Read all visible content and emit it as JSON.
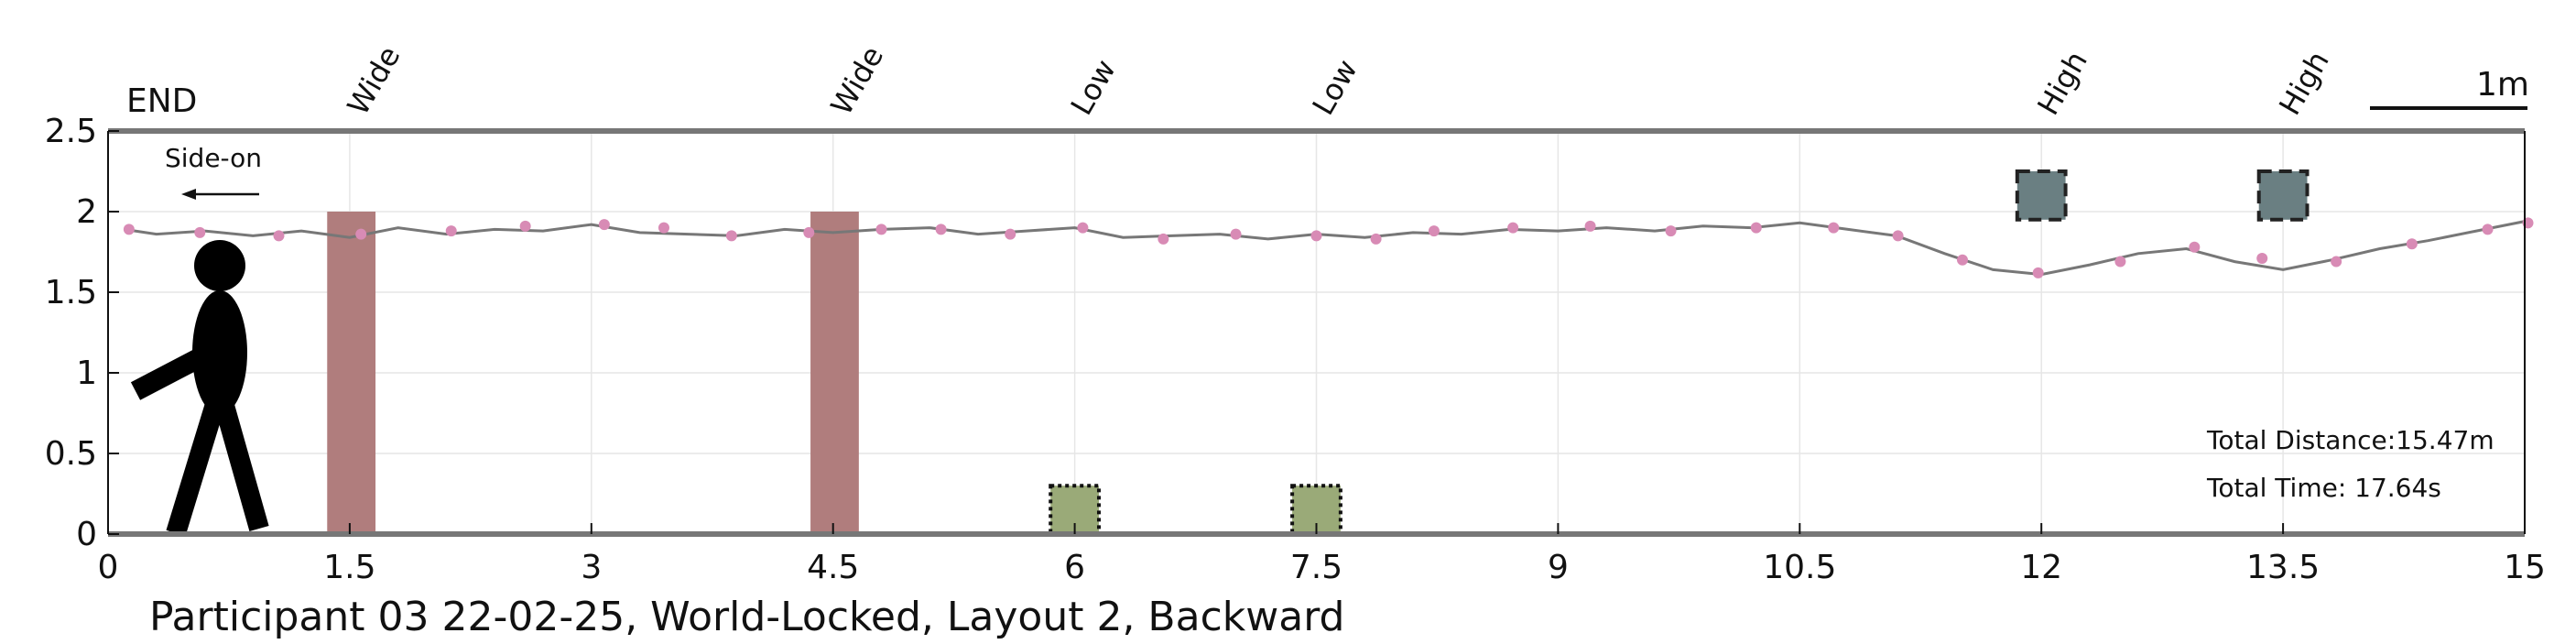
{
  "chart_data": {
    "type": "line",
    "title": "",
    "caption": "Participant 03 22-02-25, World-Locked, Layout 2, Backward",
    "xlabel": "",
    "ylabel": "",
    "xlim": [
      0,
      15
    ],
    "ylim": [
      0,
      2.5
    ],
    "x_ticks": [
      0,
      1.5,
      3,
      4.5,
      6,
      7.5,
      9,
      10.5,
      12,
      13.5,
      15
    ],
    "x_tick_labels": [
      "0",
      "1.5",
      "3",
      "4.5",
      "6",
      "7.5",
      "9",
      "10.5",
      "12",
      "13.5",
      "15"
    ],
    "y_ticks": [
      0,
      0.5,
      1,
      1.5,
      2,
      2.5
    ],
    "y_tick_labels": [
      "0",
      "0.5",
      "1",
      "1.5",
      "2",
      "2.5"
    ],
    "grid": true,
    "end_label": "END",
    "direction_label": "Side-on",
    "scale_bar_label": "1m",
    "scale_bar_length": 1,
    "path": {
      "color": "#777777",
      "x": [
        0.1,
        0.3,
        0.6,
        0.9,
        1.2,
        1.5,
        1.8,
        2.1,
        2.4,
        2.7,
        3.0,
        3.3,
        3.6,
        3.9,
        4.2,
        4.5,
        4.8,
        5.1,
        5.4,
        5.7,
        6.0,
        6.3,
        6.6,
        6.9,
        7.2,
        7.5,
        7.8,
        8.1,
        8.4,
        8.7,
        9.0,
        9.3,
        9.6,
        9.9,
        10.2,
        10.5,
        10.8,
        11.1,
        11.4,
        11.7,
        12.0,
        12.3,
        12.6,
        12.9,
        13.2,
        13.5,
        13.8,
        14.1,
        14.4,
        14.7,
        15.0
      ],
      "y": [
        1.89,
        1.86,
        1.88,
        1.85,
        1.88,
        1.84,
        1.9,
        1.86,
        1.89,
        1.88,
        1.92,
        1.87,
        1.86,
        1.85,
        1.89,
        1.87,
        1.89,
        1.9,
        1.86,
        1.88,
        1.9,
        1.84,
        1.85,
        1.86,
        1.83,
        1.86,
        1.84,
        1.87,
        1.86,
        1.89,
        1.88,
        1.9,
        1.88,
        1.91,
        1.9,
        1.93,
        1.89,
        1.85,
        1.74,
        1.64,
        1.61,
        1.67,
        1.74,
        1.77,
        1.69,
        1.64,
        1.7,
        1.77,
        1.82,
        1.88,
        1.94
      ]
    },
    "markers": {
      "color": "#d88bb5",
      "x": [
        0.13,
        0.57,
        1.06,
        1.57,
        2.13,
        2.59,
        3.08,
        3.45,
        3.87,
        4.35,
        4.8,
        5.17,
        5.6,
        6.05,
        6.55,
        7.0,
        7.5,
        7.87,
        8.23,
        8.72,
        9.2,
        9.7,
        10.23,
        10.71,
        11.11,
        11.51,
        11.98,
        12.49,
        12.95,
        13.37,
        13.83,
        14.3,
        14.77,
        15.02
      ],
      "y": [
        1.89,
        1.87,
        1.85,
        1.86,
        1.88,
        1.91,
        1.92,
        1.9,
        1.85,
        1.87,
        1.89,
        1.89,
        1.86,
        1.9,
        1.83,
        1.86,
        1.85,
        1.83,
        1.88,
        1.9,
        1.91,
        1.88,
        1.9,
        1.9,
        1.85,
        1.7,
        1.62,
        1.69,
        1.78,
        1.71,
        1.69,
        1.8,
        1.89,
        1.93
      ]
    },
    "obstacles": [
      {
        "label": "Wide",
        "type": "wide",
        "x": [
          1.36,
          1.66
        ],
        "y": [
          0,
          2.0
        ],
        "color": "#b07d7d"
      },
      {
        "label": "Wide",
        "type": "wide",
        "x": [
          4.36,
          4.66
        ],
        "y": [
          0,
          2.0
        ],
        "color": "#b07d7d"
      },
      {
        "label": "Low",
        "type": "low",
        "x": [
          5.85,
          6.15
        ],
        "y": [
          0,
          0.3
        ],
        "color": "#9aaa78"
      },
      {
        "label": "Low",
        "type": "low",
        "x": [
          7.35,
          7.65
        ],
        "y": [
          0,
          0.3
        ],
        "color": "#9aaa78"
      },
      {
        "label": "High",
        "type": "high",
        "x": [
          11.85,
          12.15
        ],
        "y": [
          1.95,
          2.25
        ],
        "color": "#6a7f82"
      },
      {
        "label": "High",
        "type": "high",
        "x": [
          13.35,
          13.65
        ],
        "y": [
          1.95,
          2.25
        ],
        "color": "#6a7f82"
      }
    ],
    "stats": {
      "distance": "Total Distance:15.47m",
      "time": "Total Time: 17.64s"
    }
  }
}
